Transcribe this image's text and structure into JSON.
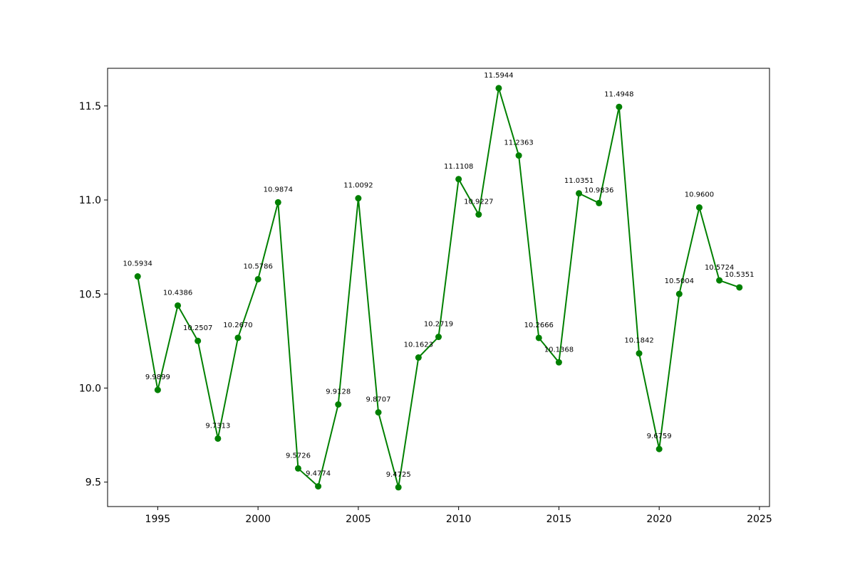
{
  "chart_data": {
    "type": "line",
    "title": "",
    "xlabel": "",
    "ylabel": "",
    "xlim": [
      1992.5,
      2025.5
    ],
    "ylim": [
      9.37,
      11.7
    ],
    "grid": false,
    "color": "#008000",
    "x_ticks": [
      1995,
      2000,
      2005,
      2010,
      2015,
      2020,
      2025
    ],
    "x_tick_labels": [
      "1995",
      "2000",
      "2005",
      "2010",
      "2015",
      "2020",
      "2025"
    ],
    "y_ticks": [
      9.5,
      10.0,
      10.5,
      11.0,
      11.5
    ],
    "y_tick_labels": [
      "9.5",
      "10.0",
      "10.5",
      "11.0",
      "11.5"
    ],
    "x": [
      1994,
      1995,
      1996,
      1997,
      1998,
      1999,
      2000,
      2001,
      2002,
      2003,
      2004,
      2005,
      2006,
      2007,
      2008,
      2009,
      2010,
      2011,
      2012,
      2013,
      2014,
      2015,
      2016,
      2017,
      2018,
      2019,
      2020,
      2021,
      2022,
      2023,
      2024
    ],
    "values": [
      10.5934,
      9.9899,
      10.4386,
      10.2507,
      9.7313,
      10.267,
      10.5786,
      10.9874,
      9.5726,
      9.4774,
      9.9128,
      11.0092,
      9.8707,
      9.4725,
      10.1623,
      10.2719,
      11.1108,
      10.9227,
      11.5944,
      11.2363,
      10.2666,
      10.1368,
      11.0351,
      10.9836,
      11.4948,
      10.1842,
      9.6759,
      10.5004,
      10.96,
      10.5724,
      10.5351
    ],
    "data_labels": [
      "10.5934",
      "9.9899",
      "10.4386",
      "10.2507",
      "9.7313",
      "10.2670",
      "10.5786",
      "10.9874",
      "9.5726",
      "9.4774",
      "9.9128",
      "11.0092",
      "9.8707",
      "9.4725",
      "10.1623",
      "10.2719",
      "11.1108",
      "10.9227",
      "11.5944",
      "11.2363",
      "10.2666",
      "10.1368",
      "11.0351",
      "10.9836",
      "11.4948",
      "10.1842",
      "9.6759",
      "10.5004",
      "10.9600",
      "10.5724",
      "10.5351"
    ]
  }
}
